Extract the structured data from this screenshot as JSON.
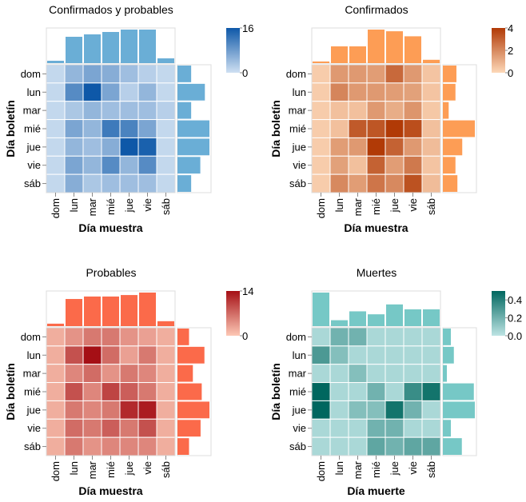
{
  "chart_data": [
    {
      "type": "heatmap",
      "title": "Confirmados y probables",
      "xlabel": "Día muestra",
      "ylabel": "Día boletín",
      "x_categories": [
        "dom",
        "lun",
        "mar",
        "mié",
        "jue",
        "vie",
        "sáb"
      ],
      "y_categories": [
        "dom",
        "lun",
        "mar",
        "mié",
        "jue",
        "vie",
        "sáb"
      ],
      "values": [
        [
          1,
          5,
          7,
          6,
          4,
          2,
          1
        ],
        [
          1,
          10,
          16,
          7,
          2,
          5,
          1
        ],
        [
          1,
          3,
          5,
          4,
          4,
          4,
          2
        ],
        [
          1,
          7,
          5,
          12,
          11,
          7,
          1
        ],
        [
          1,
          5,
          4,
          6,
          16,
          15,
          1
        ],
        [
          1,
          7,
          5,
          10,
          5,
          10,
          1
        ],
        [
          1,
          6,
          3,
          4,
          4,
          4,
          1
        ]
      ],
      "x_marginal": [
        0.5,
        5.5,
        6,
        6.5,
        7,
        7,
        1
      ],
      "y_marginal": [
        3,
        6,
        3,
        7,
        7,
        5,
        3
      ],
      "color_range": [
        0,
        16
      ],
      "color_low": "#cfe0f2",
      "color_high": "#0e58a8",
      "bar_color": "#6aaed6",
      "legend_ticks": [
        16,
        0
      ]
    },
    {
      "type": "heatmap",
      "title": "Confirmados",
      "xlabel": "Día muestra",
      "ylabel": "Día boletín",
      "x_categories": [
        "dom",
        "lun",
        "mar",
        "mié",
        "jue",
        "vie",
        "sáb"
      ],
      "y_categories": [
        "dom",
        "lun",
        "mar",
        "mié",
        "jue",
        "vie",
        "sáb"
      ],
      "values": [
        [
          0.3,
          1.6,
          1.6,
          1.5,
          2.8,
          1.6,
          0.5
        ],
        [
          0.3,
          2.1,
          1.6,
          1.6,
          1.5,
          1.4,
          0.5
        ],
        [
          0.3,
          0.6,
          0.6,
          1.6,
          1.1,
          1.7,
          0.4
        ],
        [
          0.3,
          0.6,
          3.2,
          3.3,
          4.0,
          3.5,
          0.6
        ],
        [
          0.3,
          1.5,
          1.6,
          4.2,
          3.0,
          1.6,
          0.7
        ],
        [
          0.3,
          1.4,
          0.6,
          3.0,
          1.5,
          2.4,
          0.5
        ],
        [
          0.3,
          2.0,
          1.5,
          2.5,
          2.0,
          3.4,
          0.7
        ]
      ],
      "x_marginal": [
        0.2,
        2,
        2,
        4,
        3.8,
        3.2,
        0.4
      ],
      "y_marginal": [
        1.4,
        1.3,
        0.6,
        3.3,
        2.0,
        1.3,
        1.5
      ],
      "color_range": [
        0,
        4
      ],
      "color_low": "#fdd8b8",
      "color_high": "#b13a06",
      "bar_color": "#fd9d55",
      "legend_ticks": [
        4,
        2,
        0
      ]
    },
    {
      "type": "heatmap",
      "title": "Probables",
      "xlabel": "Día muestra",
      "ylabel": "Día boletín",
      "x_categories": [
        "dom",
        "lun",
        "mar",
        "mié",
        "jue",
        "vie",
        "sáb"
      ],
      "y_categories": [
        "dom",
        "lun",
        "mar",
        "mié",
        "jue",
        "vie",
        "sáb"
      ],
      "values": [
        [
          2,
          4,
          6,
          6,
          4,
          3,
          2
        ],
        [
          2,
          9,
          14,
          7,
          3,
          6,
          2
        ],
        [
          2,
          5,
          7,
          4,
          6,
          5,
          2
        ],
        [
          2,
          9,
          5,
          10,
          8,
          6,
          2
        ],
        [
          2,
          6,
          5,
          6,
          12,
          13,
          2
        ],
        [
          2,
          7,
          6,
          8,
          6,
          9,
          2
        ],
        [
          2,
          6,
          4,
          5,
          5,
          5,
          2
        ]
      ],
      "x_marginal": [
        0.5,
        5.5,
        6,
        6,
        6.3,
        6.8,
        1
      ],
      "y_marginal": [
        3,
        7,
        4,
        6.3,
        8.3,
        6,
        3
      ],
      "color_range": [
        0,
        14
      ],
      "color_low": "#fdc8b5",
      "color_high": "#a50f15",
      "bar_color": "#fb6a4a",
      "legend_ticks": [
        14,
        0
      ]
    },
    {
      "type": "heatmap",
      "title": "Muertes",
      "xlabel": "Día muerte",
      "ylabel": "Día boletín",
      "x_categories": [
        "dom",
        "lun",
        "mar",
        "mié",
        "jue",
        "vie",
        "sáb"
      ],
      "y_categories": [
        "dom",
        "lun",
        "mar",
        "mié",
        "jue",
        "vie",
        "sáb"
      ],
      "values": [
        [
          0.05,
          0.2,
          0.2,
          0.05,
          0.05,
          0.05,
          0.05
        ],
        [
          0.3,
          0.15,
          0.05,
          0.05,
          0.05,
          0.05,
          0.05
        ],
        [
          0.05,
          0.05,
          0.15,
          0.05,
          0.05,
          0.05,
          0.05
        ],
        [
          0.5,
          0.05,
          0.05,
          0.2,
          0.05,
          0.35,
          0.45
        ],
        [
          0.55,
          0.05,
          0.15,
          0.15,
          0.45,
          0.2,
          0.05
        ],
        [
          0.05,
          0.05,
          0.05,
          0.2,
          0.2,
          0.05,
          0.05
        ],
        [
          0.05,
          0.05,
          0.05,
          0.25,
          0.2,
          0.25,
          0.25
        ]
      ],
      "x_marginal": [
        0.34,
        0.06,
        0.15,
        0.12,
        0.22,
        0.17,
        0.17
      ],
      "y_marginal": [
        0.08,
        0.11,
        0.04,
        0.31,
        0.32,
        0.08,
        0.19
      ],
      "color_range": [
        0,
        0.5
      ],
      "color_low": "#bde4e4",
      "color_high": "#00675f",
      "bar_color": "#76c8c6",
      "legend_ticks": [
        0.4,
        0.2,
        0.0
      ]
    }
  ]
}
